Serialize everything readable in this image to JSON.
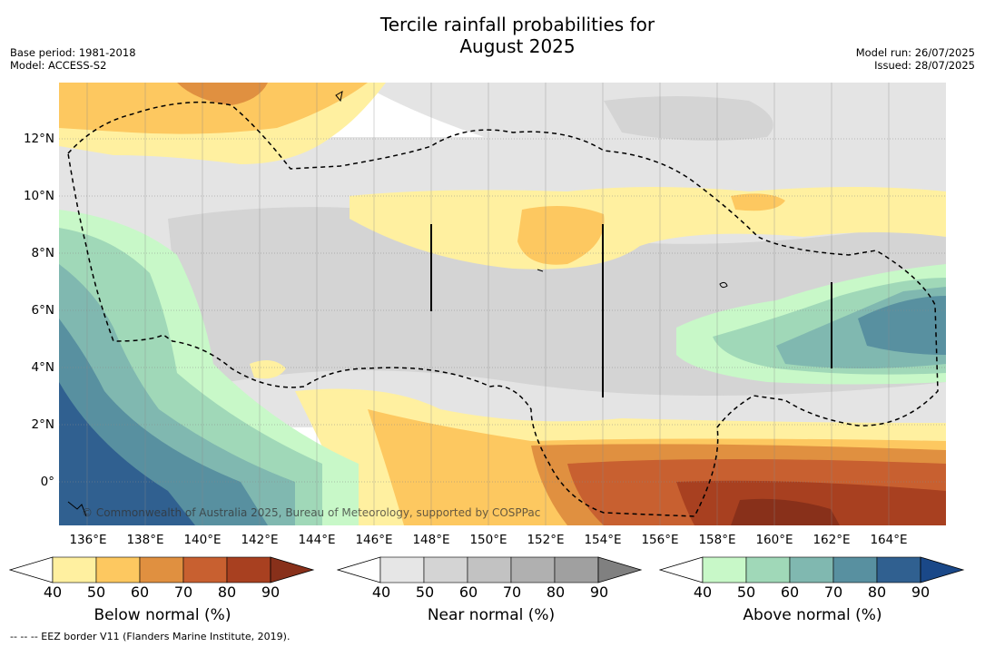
{
  "title_line1": "Tercile rainfall probabilities for",
  "title_line2": "August 2025",
  "meta_left": [
    "Base period: 1981-2018",
    "Model: ACCESS-S2"
  ],
  "meta_right": [
    "Model run: 26/07/2025",
    "Issued: 28/07/2025"
  ],
  "watermark": "© Commonwealth of Australia 2025, Bureau of Meteorology, supported by COSPPac",
  "footer": "--  --  -- EEZ border V11 (Flanders Marine Institute, 2019).",
  "lon_labels": [
    "136°E",
    "138°E",
    "140°E",
    "142°E",
    "144°E",
    "146°E",
    "148°E",
    "150°E",
    "152°E",
    "154°E",
    "156°E",
    "158°E",
    "160°E",
    "162°E",
    "164°E"
  ],
  "lat_labels": [
    "12°N",
    "10°N",
    "8°N",
    "6°N",
    "4°N",
    "2°N",
    "0°"
  ],
  "colorbars": [
    {
      "id": "below",
      "label": "Below normal (%)",
      "ticks": [
        "40",
        "50",
        "60",
        "70",
        "80",
        "90"
      ],
      "colors": [
        "#ffffff",
        "#fff0a0",
        "#fdc860",
        "#e09040",
        "#c86030",
        "#a84020",
        "#88301a"
      ]
    },
    {
      "id": "near",
      "label": "Near normal (%)",
      "ticks": [
        "40",
        "50",
        "60",
        "70",
        "80",
        "90"
      ],
      "colors": [
        "#ffffff",
        "#e6e6e6",
        "#d4d4d4",
        "#c2c2c2",
        "#b0b0b0",
        "#a0a0a0",
        "#808080"
      ]
    },
    {
      "id": "above",
      "label": "Above normal (%)",
      "ticks": [
        "40",
        "50",
        "60",
        "70",
        "80",
        "90"
      ],
      "colors": [
        "#ffffff",
        "#c8f8c8",
        "#a0d8b8",
        "#80b8b0",
        "#5890a0",
        "#306090",
        "#1a4888"
      ]
    }
  ]
}
